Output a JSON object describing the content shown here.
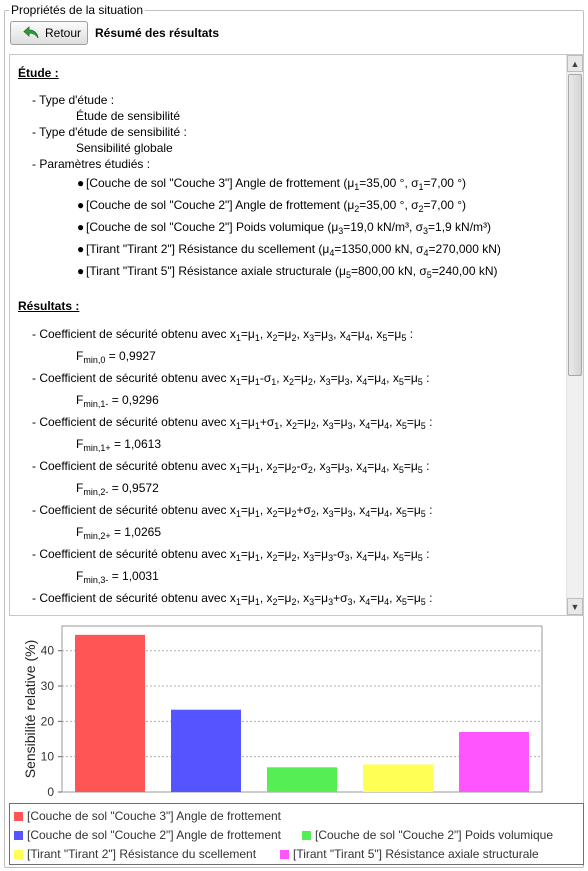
{
  "groupbox": {
    "title": "Propriétés de la situation"
  },
  "toolbar": {
    "back_label": "Retour",
    "summary_title": "Résumé des résultats"
  },
  "report": {
    "study_heading": "Étude :",
    "study_type_label": "- Type d'étude :",
    "study_type_value": "Étude de sensibilité",
    "sens_type_label": "- Type d'étude de sensibilité :",
    "sens_type_value": "Sensibilité globale",
    "params_label": "- Paramètres étudiés :",
    "params": [
      {
        "pre": "[Couche de sol \"Couche 3\"] Angle de frottement (μ",
        "i": "1",
        "mid": "=35,00 °, σ",
        "j": "1",
        "post": "=7,00 °)"
      },
      {
        "pre": "[Couche de sol \"Couche 2\"] Angle de frottement (μ",
        "i": "2",
        "mid": "=35,00 °, σ",
        "j": "2",
        "post": "=7,00 °)"
      },
      {
        "pre": "[Couche de sol \"Couche 2\"] Poids volumique (μ",
        "i": "3",
        "mid": "=19,0 kN/m³, σ",
        "j": "3",
        "post": "=1,9 kN/m³)"
      },
      {
        "pre": "[Tirant \"Tirant 2\"] Résistance du scellement (μ",
        "i": "4",
        "mid": "=1350,000 kN, σ",
        "j": "4",
        "post": "=270,000 kN)"
      },
      {
        "pre": "[Tirant \"Tirant 5\"] Résistance axiale structurale (μ",
        "i": "5",
        "mid": "=800,00 kN, σ",
        "j": "5",
        "post": "=240,00 kN)"
      }
    ],
    "results_heading": "Résultats :",
    "coef_prefix": "- Coefficient de sécurité obtenu avec ",
    "results": [
      {
        "cond": [
          "=μ",
          "1",
          "",
          "",
          "=μ",
          "2",
          "",
          "",
          "=μ",
          "3",
          "",
          "",
          "=μ",
          "4",
          "=μ",
          "5"
        ],
        "F_sub": "min,0",
        "F_val": "= 0,9927"
      },
      {
        "cond": [
          "=μ",
          "1",
          "-σ",
          "1",
          "=μ",
          "2",
          "",
          "",
          "=μ",
          "3",
          "",
          "",
          "=μ",
          "4",
          "=μ",
          "5"
        ],
        "F_sub": "min,1-",
        "F_val": "= 0,9296"
      },
      {
        "cond": [
          "=μ",
          "1",
          "+σ",
          "1",
          "=μ",
          "2",
          "",
          "",
          "=μ",
          "3",
          "",
          "",
          "=μ",
          "4",
          "=μ",
          "5"
        ],
        "F_sub": "min,1+",
        "F_val": "= 1,0613"
      },
      {
        "cond": [
          "=μ",
          "1",
          "",
          "",
          "=μ",
          "2",
          "-σ",
          "2",
          "=μ",
          "3",
          "",
          "",
          "=μ",
          "4",
          "=μ",
          "5"
        ],
        "F_sub": "min,2-",
        "F_val": "= 0,9572"
      },
      {
        "cond": [
          "=μ",
          "1",
          "",
          "",
          "=μ",
          "2",
          "+σ",
          "2",
          "=μ",
          "3",
          "",
          "",
          "=μ",
          "4",
          "=μ",
          "5"
        ],
        "F_sub": "min,2+",
        "F_val": "= 1,0265"
      },
      {
        "cond": [
          "=μ",
          "1",
          "",
          "",
          "=μ",
          "2",
          "",
          "",
          "=μ",
          "3",
          "-σ",
          "3",
          "=μ",
          "4",
          "=μ",
          "5"
        ],
        "F_sub": "min,3-",
        "F_val": "= 1,0031"
      },
      {
        "cond": [
          "=μ",
          "1",
          "",
          "",
          "=μ",
          "2",
          "",
          "",
          "=μ",
          "3",
          "+σ",
          "3",
          "=μ",
          "4",
          "=μ",
          "5"
        ],
        "F_sub": "",
        "F_val": ""
      }
    ]
  },
  "chart_data": {
    "type": "bar",
    "ylabel": "Sensibilité relative (%)",
    "ylim": [
      0,
      47
    ],
    "yticks": [
      "0",
      "10",
      "20",
      "30",
      "40"
    ],
    "ytick_values": [
      0,
      10,
      20,
      30,
      40
    ],
    "grid": true,
    "series": [
      {
        "name": "[Couche de sol \"Couche 3\"] Angle de frottement",
        "value": 44.5,
        "color": "#ff5555"
      },
      {
        "name": "[Couche de sol \"Couche 2\"] Angle de frottement",
        "value": 23.3,
        "color": "#5555ff"
      },
      {
        "name": "[Couche de sol \"Couche 2\"] Poids volumique",
        "value": 7.0,
        "color": "#55ee55"
      },
      {
        "name": "[Tirant \"Tirant 2\"] Résistance du scellement",
        "value": 7.8,
        "color": "#ffff55"
      },
      {
        "name": "[Tirant \"Tirant 5\"] Résistance axiale structurale",
        "value": 17.0,
        "color": "#ff55ff"
      }
    ]
  },
  "icons": {
    "back": "undo-arrow-icon",
    "scroll_up": "scroll-up-arrow-icon",
    "scroll_down": "scroll-down-arrow-icon"
  }
}
